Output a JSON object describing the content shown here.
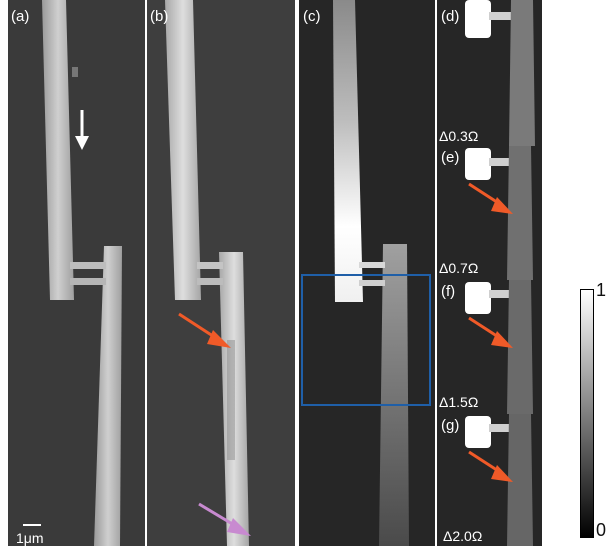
{
  "panels": {
    "a": {
      "label": "(a)"
    },
    "b": {
      "label": "(b)"
    },
    "c": {
      "label": "(c)"
    },
    "d": {
      "label": "(d)",
      "resistance": "Δ0.3Ω"
    },
    "e": {
      "label": "(e)",
      "resistance": "Δ0.7Ω"
    },
    "f": {
      "label": "(f)",
      "resistance": "Δ1.5Ω"
    },
    "g": {
      "label": "(g)",
      "resistance": "Δ2.0Ω"
    }
  },
  "scale_bar": {
    "label": "1μm"
  },
  "colorbar": {
    "max_label": "1",
    "min_label": "0"
  },
  "colors": {
    "arrow_orange": "#f05a28",
    "arrow_purple": "#c88ad0",
    "arrow_white": "#ffffff",
    "inset_box": "#1f5fa8",
    "sem_background": "#3b3b3b",
    "map_background": "#262626"
  }
}
